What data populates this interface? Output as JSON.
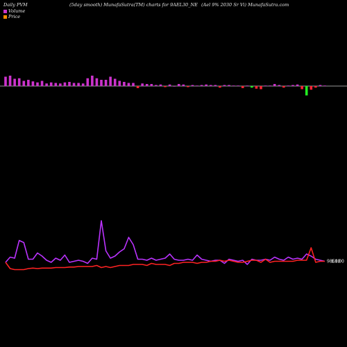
{
  "header": {
    "left": "Daily PVM",
    "middle": "(5day smooth) MunafaSutra(TM) charts for 9AEL30_NE",
    "right": "(Ael 9% 2030  Sr Vi) MunafaSutra.com"
  },
  "legend": [
    {
      "label": "Volume",
      "color": "#cc33cc"
    },
    {
      "label": "Price",
      "color": "#ff8c00"
    }
  ],
  "colors": {
    "bar_up": "#cc33cc",
    "bar_down": "#ff2233",
    "bar_green": "#22ee22",
    "price_line": "#ff2222",
    "volume_line": "#bb33ff",
    "baseline": "#cccccc"
  },
  "chart_data": {
    "type": "line",
    "bars": [
      18,
      20,
      14,
      15,
      10,
      12,
      9,
      7,
      10,
      5,
      7,
      6,
      5,
      7,
      8,
      6,
      6,
      5,
      15,
      20,
      15,
      12,
      12,
      18,
      14,
      10,
      8,
      6,
      6,
      -4,
      5,
      4,
      4,
      2,
      3,
      -2,
      3,
      0,
      4,
      3,
      -2,
      2,
      1,
      2,
      3,
      2,
      2,
      -3,
      2,
      2,
      1,
      1,
      -4,
      1,
      -3,
      -5,
      -6,
      1,
      1,
      4,
      2,
      -3,
      1,
      2,
      3,
      -6,
      -18,
      -7,
      -3,
      2,
      1
    ],
    "series": [
      {
        "values": [
          16,
          26,
          24,
          58,
          54,
          22,
          22,
          34,
          28,
          20,
          16,
          24,
          20,
          30,
          16,
          18,
          20,
          18,
          14,
          24,
          22,
          96,
          38,
          24,
          28,
          36,
          42,
          64,
          50,
          22,
          22,
          20,
          24,
          20,
          22,
          24,
          32,
          22,
          20,
          20,
          22,
          20,
          30,
          22,
          20,
          18,
          20,
          20,
          14,
          22,
          20,
          18,
          20,
          12,
          22,
          20,
          20,
          22,
          20,
          26,
          22,
          20,
          26,
          22,
          24,
          22,
          32,
          28,
          22,
          20,
          18
        ]
      },
      {
        "values": [
          16,
          4,
          2,
          2,
          2,
          4,
          5,
          4,
          5,
          5,
          5,
          6,
          6,
          6,
          7,
          7,
          8,
          8,
          8,
          8,
          10,
          6,
          8,
          6,
          8,
          10,
          10,
          10,
          12,
          12,
          12,
          10,
          14,
          12,
          12,
          12,
          10,
          14,
          14,
          16,
          16,
          16,
          14,
          16,
          16,
          18,
          18,
          20,
          18,
          20,
          18,
          16,
          16,
          18,
          20,
          20,
          16,
          22,
          16,
          18,
          18,
          18,
          18,
          18,
          20,
          20,
          20,
          44,
          16,
          18,
          18
        ]
      }
    ],
    "price_label": "9861.00",
    "volume_label": "4.00"
  }
}
